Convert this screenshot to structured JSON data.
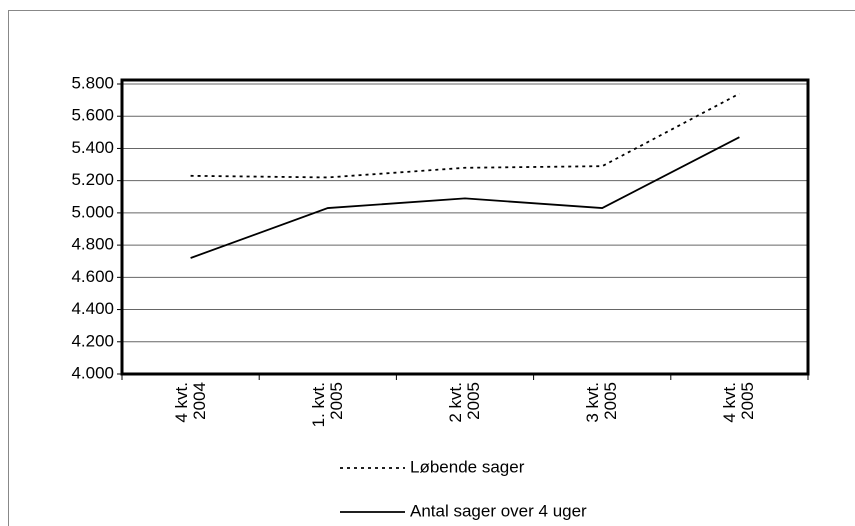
{
  "chart_data": {
    "type": "line",
    "categories": [
      "4 kvt. 2004",
      "1. kvt. 2005",
      "2 kvt. 2005",
      "3 kvt. 2005",
      "4 kvt. 2005"
    ],
    "series": [
      {
        "name": "Løbende sager",
        "color": "#000000",
        "dash": "dotted",
        "values": [
          5230,
          5220,
          5280,
          5290,
          5740
        ]
      },
      {
        "name": "Antal sager over 4 uger",
        "color": "#000000",
        "dash": "solid",
        "values": [
          4720,
          5030,
          5090,
          5030,
          5470
        ]
      }
    ],
    "ylim": [
      4000,
      5800
    ],
    "yticks": [
      {
        "value": 4000,
        "label": "4.000"
      },
      {
        "value": 4200,
        "label": "4.200"
      },
      {
        "value": 4400,
        "label": "4.400"
      },
      {
        "value": 4600,
        "label": "4.600"
      },
      {
        "value": 4800,
        "label": "4.800"
      },
      {
        "value": 5000,
        "label": "5.000"
      },
      {
        "value": 5200,
        "label": "5.200"
      },
      {
        "value": 5400,
        "label": "5.400"
      },
      {
        "value": 5600,
        "label": "5.600"
      },
      {
        "value": 5800,
        "label": "5.800"
      }
    ],
    "grid": true,
    "legend": "bottom"
  }
}
